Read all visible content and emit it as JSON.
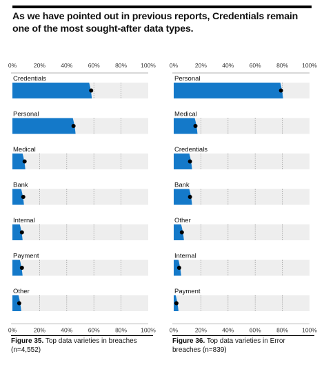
{
  "headline": "As we have pointed out in previous reports, Credentials remain one of the most sought-after data types.",
  "colors": {
    "bar": "#1479c9",
    "track": "#eeeeee",
    "dot": "#000000",
    "rule": "#000000"
  },
  "chart_data": [
    {
      "type": "bar",
      "orientation": "horizontal",
      "title": "",
      "x_ticks": [
        "0%",
        "20%",
        "40%",
        "60%",
        "80%",
        "100%"
      ],
      "xlim": [
        0,
        100
      ],
      "grid": true,
      "categories": [
        "Credentials",
        "Personal",
        "Medical",
        "Bank",
        "Internal",
        "Payment",
        "Other"
      ],
      "values": [
        58,
        46,
        9,
        8,
        7,
        7,
        6
      ],
      "point_estimates": [
        58,
        45,
        9,
        8,
        7,
        7,
        5
      ],
      "caption_label": "Figure 35.",
      "caption_text": "Top data varieties in breaches (n=4,552)"
    },
    {
      "type": "bar",
      "orientation": "horizontal",
      "title": "",
      "x_ticks": [
        "0%",
        "20%",
        "40%",
        "60%",
        "80%",
        "100%"
      ],
      "xlim": [
        0,
        100
      ],
      "grid": true,
      "categories": [
        "Personal",
        "Medical",
        "Credentials",
        "Bank",
        "Other",
        "Internal",
        "Payment"
      ],
      "values": [
        80,
        17,
        13,
        13,
        7,
        5,
        3
      ],
      "point_estimates": [
        79,
        16,
        12,
        12,
        6,
        4,
        2
      ],
      "caption_label": "Figure 36.",
      "caption_text": "Top data varieties in Error breaches (n=839)"
    }
  ]
}
